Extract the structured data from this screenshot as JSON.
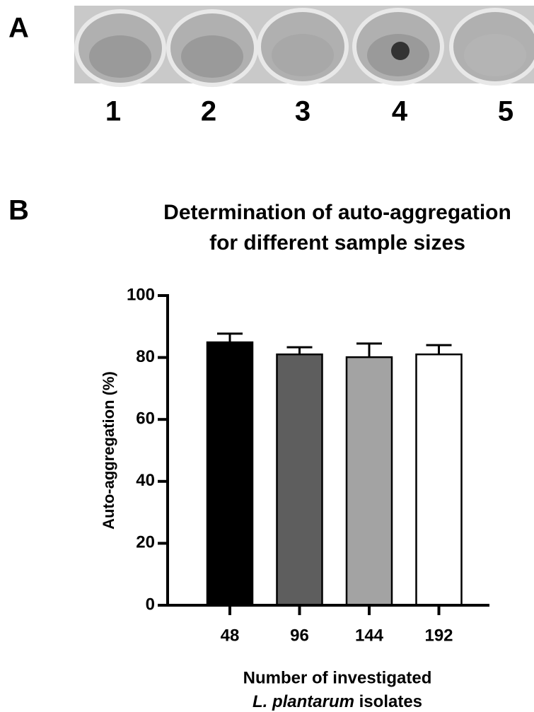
{
  "panel_a": {
    "label": "A",
    "well_labels": [
      "1",
      "2",
      "3",
      "4",
      "5"
    ]
  },
  "chart_data": {
    "type": "bar",
    "panel_label": "B",
    "title": [
      "Determination of auto-aggregation",
      "for different sample sizes"
    ],
    "ylabel": "Auto-aggregation (%)",
    "xlabel": {
      "line1": "Number of investigated",
      "species": "L. plantarum",
      "line2_rest": "isolates"
    },
    "categories": [
      "48",
      "96",
      "144",
      "192"
    ],
    "values": [
      84.9,
      81.0,
      80.1,
      81.0
    ],
    "errors": [
      2.8,
      2.3,
      4.4,
      3.0
    ],
    "colors": [
      "#000000",
      "#5e5e5e",
      "#a3a3a3",
      "#ffffff"
    ],
    "ylim": [
      0,
      100
    ],
    "yticks": [
      0,
      20,
      40,
      60,
      80,
      100
    ],
    "grid": false
  }
}
